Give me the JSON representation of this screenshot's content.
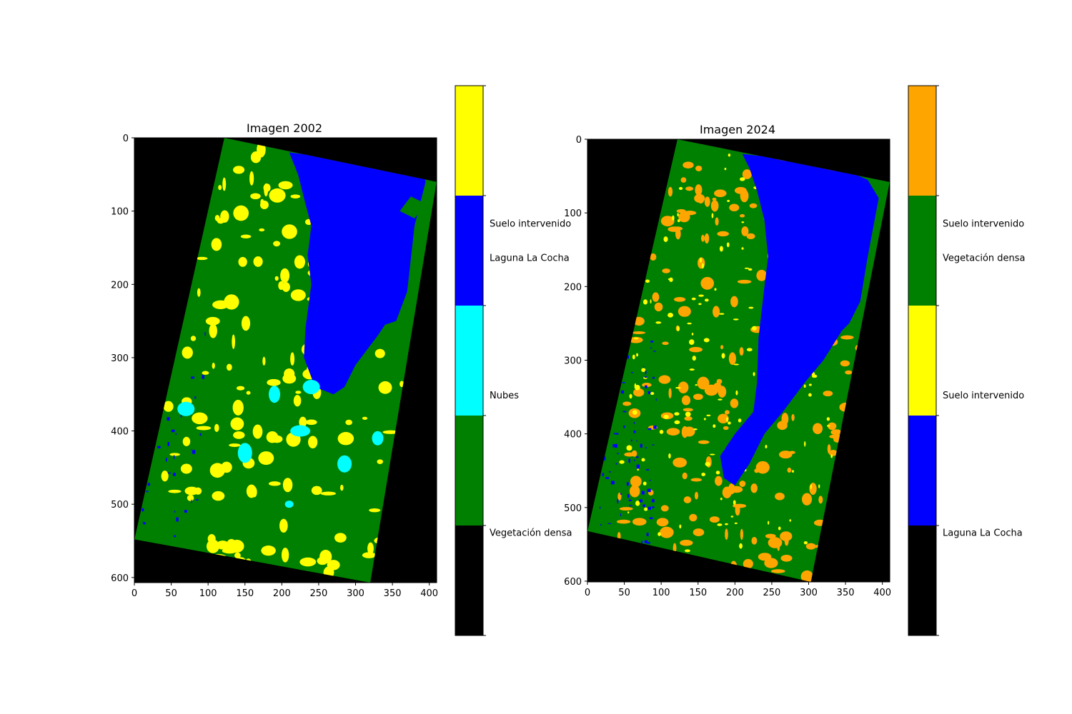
{
  "chart_data": [
    {
      "type": "heatmap",
      "title": "Imagen 2002",
      "xlabel": "",
      "ylabel": "",
      "xlim": [
        0,
        410
      ],
      "ylim": [
        607,
        0
      ],
      "xticks": [
        0,
        50,
        100,
        150,
        200,
        250,
        300,
        350,
        400
      ],
      "yticks": [
        0,
        100,
        200,
        300,
        400,
        500,
        600
      ],
      "colorbar": {
        "segments": [
          {
            "color": "#000000",
            "label": ""
          },
          {
            "color": "#008000",
            "label": "Vegetación densa"
          },
          {
            "color": "#00ffff",
            "label": "Nubes"
          },
          {
            "color": "#0000ff",
            "label": "Laguna La Cocha"
          },
          {
            "color": "#ffff00",
            "label": "Suelo intervenido"
          }
        ]
      }
    },
    {
      "type": "heatmap",
      "title": "Imagen 2024",
      "xlabel": "",
      "ylabel": "",
      "xlim": [
        0,
        410
      ],
      "ylim": [
        601,
        0
      ],
      "xticks": [
        0,
        50,
        100,
        150,
        200,
        250,
        300,
        350,
        400
      ],
      "yticks": [
        0,
        100,
        200,
        300,
        400,
        500,
        600
      ],
      "colorbar": {
        "segments": [
          {
            "color": "#000000",
            "label": ""
          },
          {
            "color": "#0000ff",
            "label": "Laguna La Cocha"
          },
          {
            "color": "#ffff00",
            "label": "Suelo intervenido"
          },
          {
            "color": "#008000",
            "label": "Vegetación densa"
          },
          {
            "color": "#ffa500",
            "label": "Suelo intervenido"
          }
        ]
      }
    }
  ]
}
